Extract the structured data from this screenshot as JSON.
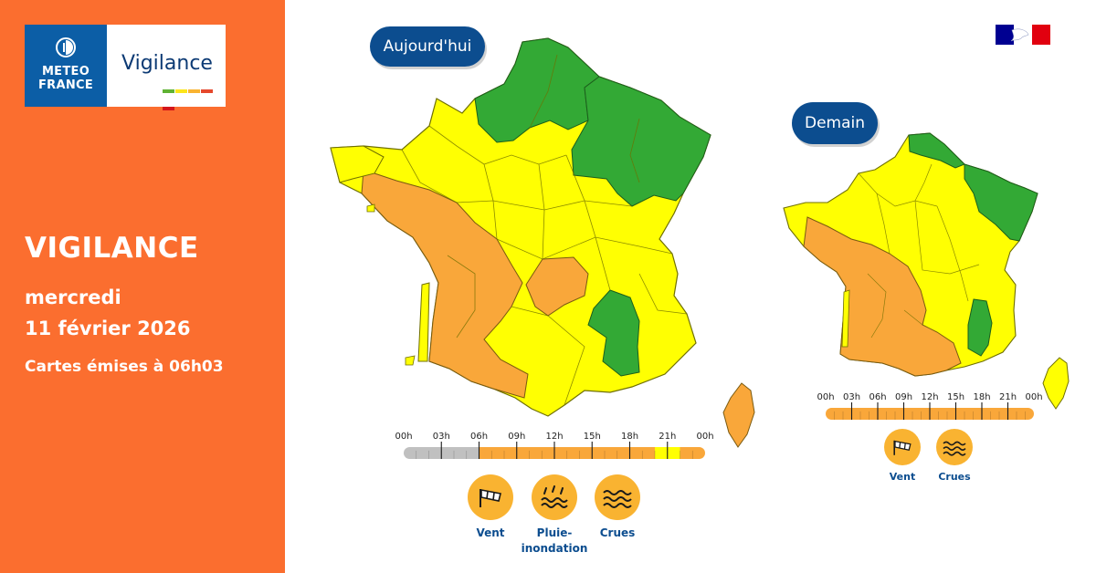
{
  "header": {
    "logo_line1": "METEO",
    "logo_line2": "FRANCE",
    "logo_product": "Vigilance",
    "logo_bar_colors": [
      "#5fb233",
      "#fce51a",
      "#f9b331",
      "#e5482c",
      "#d4151a"
    ]
  },
  "summary": {
    "title": "VIGILANCE",
    "day": "mercredi",
    "date": "11 février 2026",
    "issued": "Cartes émises à 06h03"
  },
  "colors": {
    "left_panel": "#fb6e2f",
    "pill": "#0c4d8f",
    "green": "#33a935",
    "yellow": "#ffff02",
    "orange": "#f9a73a",
    "timeline_grey": "#c0c0c0",
    "icon_bg": "#f9b331",
    "label_blue": "#0c4d8f"
  },
  "maps": {
    "today": {
      "label": "Aujourd'hui",
      "timeline": {
        "ticks": [
          "00h",
          "03h",
          "06h",
          "09h",
          "12h",
          "15h",
          "18h",
          "21h",
          "00h"
        ],
        "segments": [
          {
            "from_hour": 0,
            "to_hour": 6,
            "level": "past"
          },
          {
            "from_hour": 6,
            "to_hour": 20,
            "level": "orange"
          },
          {
            "from_hour": 20,
            "to_hour": 22,
            "level": "yellow"
          },
          {
            "from_hour": 22,
            "to_hour": 24,
            "level": "orange"
          }
        ]
      },
      "phenomena": [
        {
          "label": "Vent",
          "icon": "wind-sock-icon"
        },
        {
          "label": "Pluie-inondation",
          "label_line1": "Pluie-",
          "label_line2": "inondation",
          "icon": "rain-flood-icon"
        },
        {
          "label": "Crues",
          "icon": "flood-waves-icon"
        }
      ]
    },
    "tomorrow": {
      "label": "Demain",
      "timeline": {
        "ticks": [
          "00h",
          "03h",
          "06h",
          "09h",
          "12h",
          "15h",
          "18h",
          "21h",
          "00h"
        ],
        "segments": [
          {
            "from_hour": 0,
            "to_hour": 24,
            "level": "orange"
          }
        ]
      },
      "phenomena": [
        {
          "label": "Vent",
          "icon": "wind-sock-icon"
        },
        {
          "label": "Crues",
          "icon": "flood-waves-icon"
        }
      ]
    }
  }
}
